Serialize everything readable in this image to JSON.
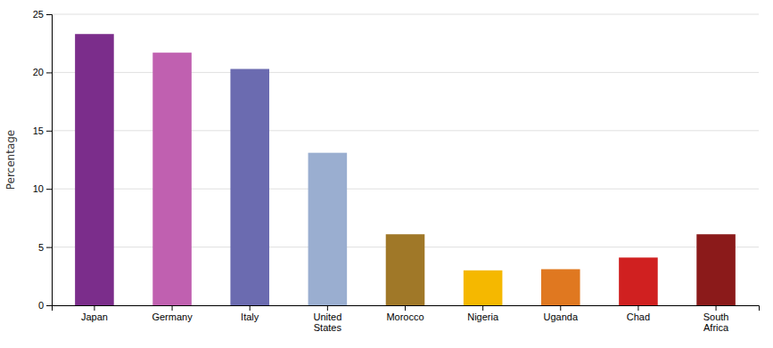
{
  "chart_data": {
    "type": "bar",
    "ylabel": "Percentage",
    "categories": [
      "Japan",
      "Germany",
      "Italy",
      "United\nStates",
      "Morocco",
      "Nigeria",
      "Uganda",
      "Chad",
      "South\nAfrica"
    ],
    "values": [
      23.3,
      21.7,
      20.3,
      13.1,
      6.1,
      3.0,
      3.1,
      4.1,
      6.1
    ],
    "colors": [
      "#7B2D8B",
      "#C060B0",
      "#6B6BB0",
      "#9AAED0",
      "#A07828",
      "#F5B800",
      "#E07820",
      "#D02020",
      "#8B1A1A"
    ],
    "ylim": [
      0,
      25
    ],
    "yticks": [
      0,
      5,
      10,
      15,
      20,
      25
    ],
    "grid": true
  }
}
